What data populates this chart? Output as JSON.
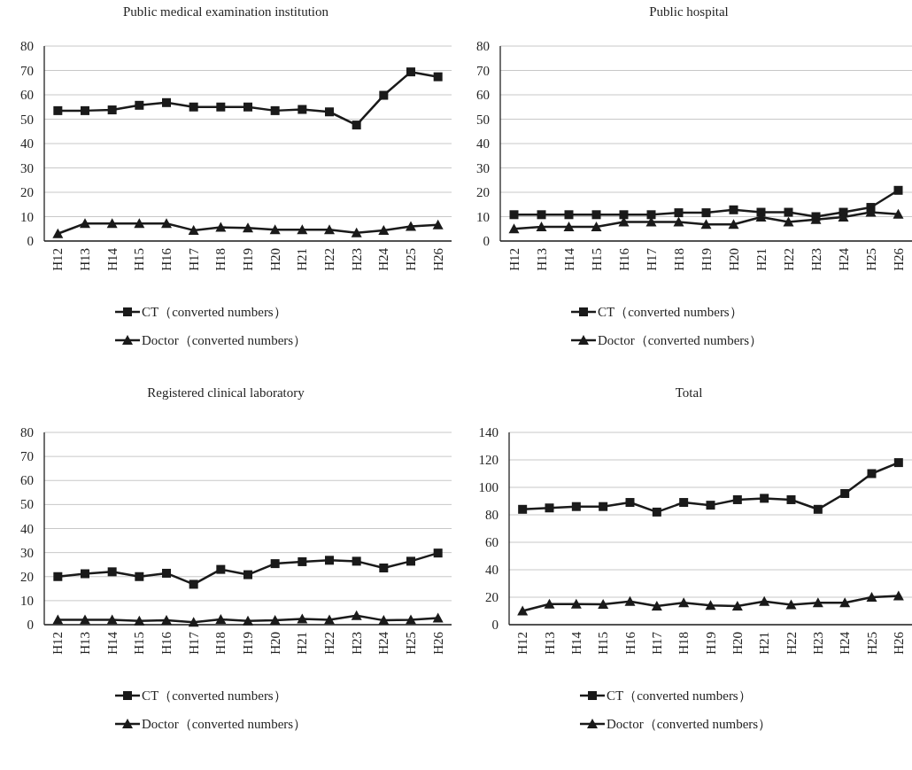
{
  "chart_data": [
    {
      "type": "line",
      "title": "Public medical examination institution",
      "categories": [
        "H12",
        "H13",
        "H14",
        "H15",
        "H16",
        "H17",
        "H18",
        "H19",
        "H20",
        "H21",
        "H22",
        "H23",
        "H24",
        "H25",
        "H26"
      ],
      "ylim": [
        0,
        80
      ],
      "yticks": [
        0,
        10,
        20,
        30,
        40,
        50,
        60,
        70,
        80
      ],
      "grid": "y",
      "legend": "bottom",
      "series": [
        {
          "name": "CT（converted numbers）",
          "color": "#1a1a1a",
          "marker": "square",
          "values": [
            53.5,
            53.5,
            53.8,
            55.7,
            56.8,
            55,
            55,
            55,
            53.5,
            54,
            53,
            47.6,
            59.8,
            69.4,
            67.4
          ]
        },
        {
          "name": "Doctor（converted numbers）",
          "color": "#1a1a1a",
          "marker": "triangle",
          "values": [
            3,
            7.2,
            7.2,
            7.2,
            7.2,
            4.4,
            5.6,
            5.4,
            4.6,
            4.6,
            4.6,
            3.4,
            4.4,
            6,
            6.6
          ]
        }
      ]
    },
    {
      "type": "line",
      "title": "Public hospital",
      "categories": [
        "H12",
        "H13",
        "H14",
        "H15",
        "H16",
        "H17",
        "H18",
        "H19",
        "H20",
        "H21",
        "H22",
        "H23",
        "H24",
        "H25",
        "H26"
      ],
      "ylim": [
        0,
        80
      ],
      "yticks": [
        0,
        10,
        20,
        30,
        40,
        50,
        60,
        70,
        80
      ],
      "grid": "y",
      "legend": "bottom",
      "series": [
        {
          "name": "CT（converted numbers）",
          "color": "#1a1a1a",
          "marker": "square",
          "values": [
            10.8,
            10.8,
            10.8,
            10.8,
            10.8,
            10.8,
            11.6,
            11.6,
            12.8,
            11.8,
            11.8,
            10,
            11.8,
            13.8,
            20.8
          ]
        },
        {
          "name": "Doctor（converted numbers）",
          "color": "#1a1a1a",
          "marker": "triangle",
          "values": [
            5,
            5.8,
            5.8,
            5.8,
            7.8,
            7.8,
            7.8,
            6.8,
            6.8,
            9.8,
            7.8,
            8.8,
            9.8,
            11.8,
            11
          ]
        }
      ]
    },
    {
      "type": "line",
      "title": "Registered clinical laboratory",
      "categories": [
        "H12",
        "H13",
        "H14",
        "H15",
        "H16",
        "H17",
        "H18",
        "H19",
        "H20",
        "H21",
        "H22",
        "H23",
        "H24",
        "H25",
        "H26"
      ],
      "ylim": [
        0,
        80
      ],
      "yticks": [
        0,
        10,
        20,
        30,
        40,
        50,
        60,
        70,
        80
      ],
      "grid": "y",
      "legend": "bottom",
      "series": [
        {
          "name": "CT（converted numbers）",
          "color": "#1a1a1a",
          "marker": "square",
          "values": [
            20,
            21.2,
            22,
            20,
            21.4,
            16.8,
            23,
            20.8,
            25.4,
            26.2,
            26.8,
            26.4,
            23.6,
            26.4,
            29.8
          ]
        },
        {
          "name": "Doctor（converted numbers）",
          "color": "#1a1a1a",
          "marker": "triangle",
          "values": [
            2,
            2,
            2,
            1.6,
            1.8,
            1,
            2.2,
            1.6,
            1.8,
            2.4,
            2,
            3.8,
            1.8,
            2,
            2.8
          ]
        }
      ]
    },
    {
      "type": "line",
      "title": "Total",
      "categories": [
        "H12",
        "H13",
        "H14",
        "H15",
        "H16",
        "H17",
        "H18",
        "H19",
        "H20",
        "H21",
        "H22",
        "H23",
        "H24",
        "H25",
        "H26"
      ],
      "ylim": [
        0,
        140
      ],
      "yticks": [
        0,
        20,
        40,
        60,
        80,
        100,
        120,
        140
      ],
      "grid": "y",
      "legend": "bottom",
      "series": [
        {
          "name": "CT（converted numbers）",
          "color": "#1a1a1a",
          "marker": "square",
          "values": [
            84,
            85,
            86,
            86,
            89,
            82,
            89,
            87,
            91,
            92,
            91,
            84,
            95.5,
            110,
            118
          ]
        },
        {
          "name": "Doctor（converted numbers）",
          "color": "#1a1a1a",
          "marker": "triangle",
          "values": [
            10,
            15,
            15,
            14.8,
            17,
            13.5,
            16,
            14,
            13.5,
            17,
            14.5,
            16,
            16,
            20,
            21
          ]
        }
      ]
    }
  ]
}
